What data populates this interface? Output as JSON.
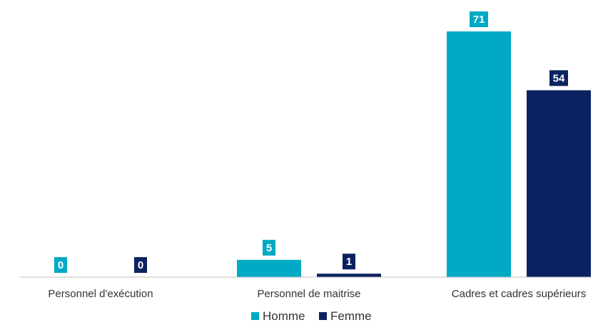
{
  "chart_data": {
    "type": "bar",
    "categories": [
      "Personnel d'exécution",
      "Personnel de maitrise",
      "Cadres et cadres supérieurs"
    ],
    "series": [
      {
        "name": "Homme",
        "values": [
          0,
          5,
          71
        ],
        "color": "#00AAC4"
      },
      {
        "name": "Femme",
        "values": [
          0,
          1,
          54
        ],
        "color": "#0B2260"
      }
    ],
    "ylim": [
      0,
      71
    ],
    "grid": false,
    "data_labels": true,
    "legend": {
      "position": "bottom"
    },
    "axis_color": "#bfbfbf"
  }
}
